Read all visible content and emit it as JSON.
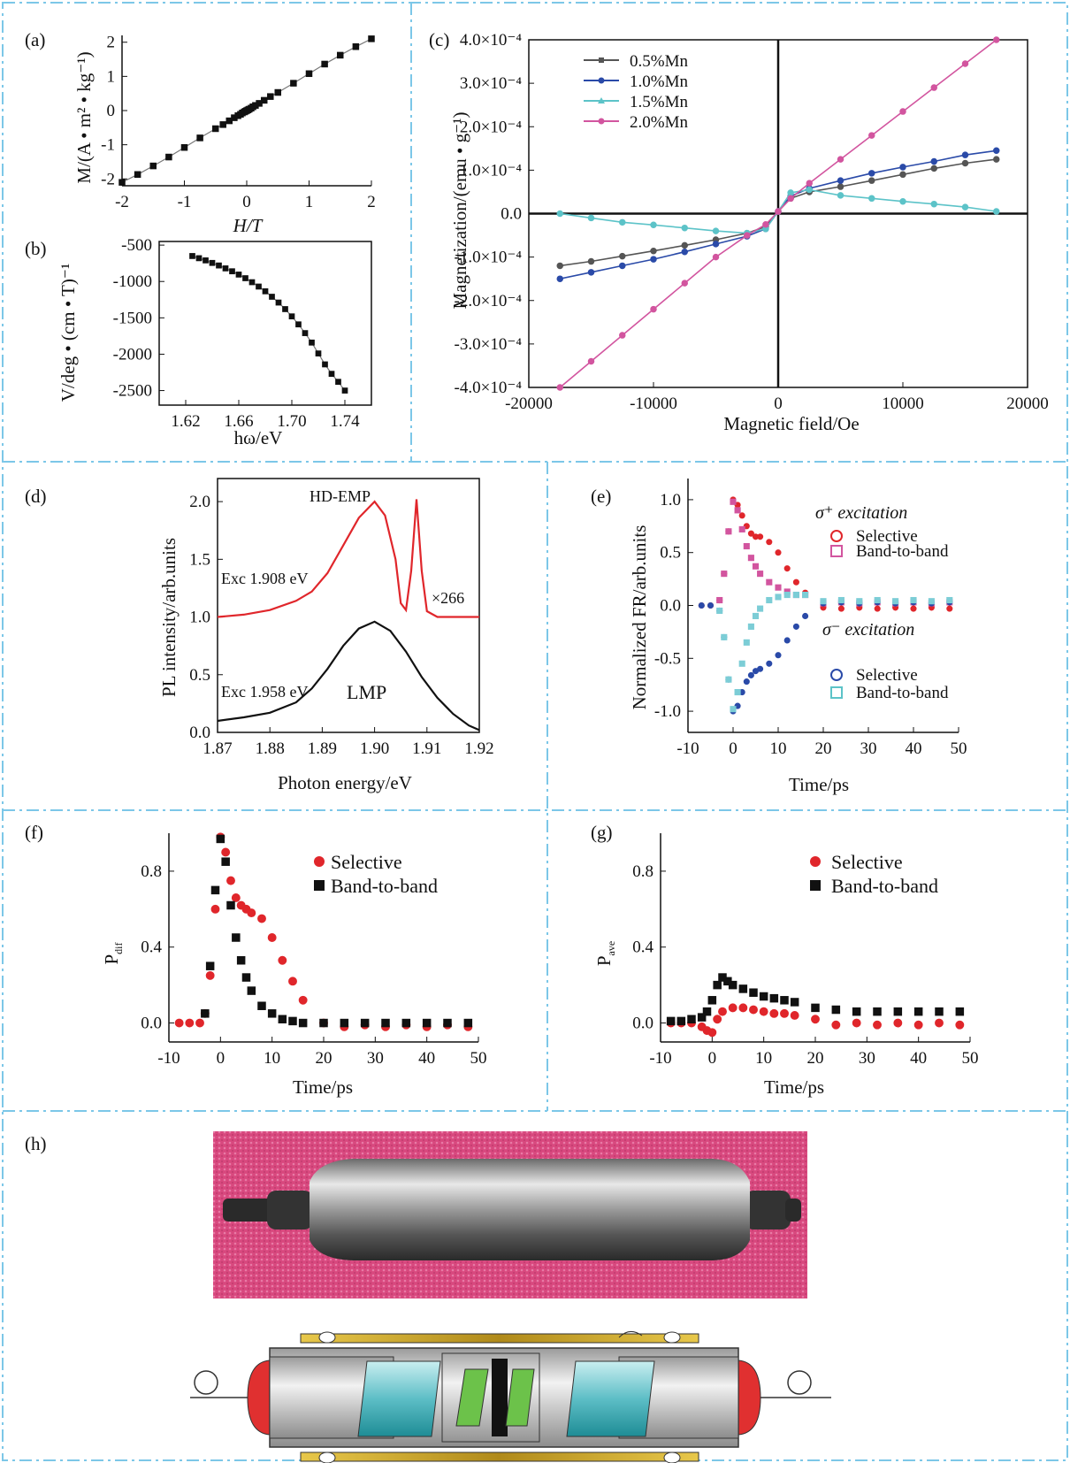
{
  "panels": {
    "a": {
      "label": "(a)",
      "xlabel": "H/T",
      "ylabel": "M/(A • m² • kg⁻¹)"
    },
    "b": {
      "label": "(b)",
      "xlabel": "hω/eV",
      "ylabel": "V/deg • (cm • T)⁻¹"
    },
    "c": {
      "label": "(c)",
      "xlabel": "Magnetic field/Oe",
      "ylabel": "Magnetization/(emu • g⁻¹)"
    },
    "d": {
      "label": "(d)",
      "xlabel": "Photon energy/eV",
      "ylabel": "PL intensity/arb.units",
      "ann_hdemp": "HD-EMP",
      "ann_exc1": "Exc 1.908 eV",
      "ann_exc2": "Exc 1.958 eV",
      "ann_x266": "×266",
      "ann_lmp": "LMP"
    },
    "e": {
      "label": "(e)",
      "xlabel": "Time/ps",
      "ylabel": "Normalized FR/arb.units",
      "sigma_plus": "σ⁺ excitation",
      "sigma_minus": "σ⁻ excitation",
      "leg_selective": "Selective",
      "leg_btb": "Band-to-band"
    },
    "f": {
      "label": "(f)",
      "xlabel": "Time/ps",
      "ylabel": "P",
      "ysub": "dif",
      "leg_selective": "Selective",
      "leg_btb": "Band-to-band"
    },
    "g": {
      "label": "(g)",
      "xlabel": "Time/ps",
      "ylabel": "P",
      "ysub": "ave",
      "leg_selective": "Selective",
      "leg_btb": "Band-to-band"
    },
    "h": {
      "label": "(h)"
    }
  },
  "colors": {
    "border": "#7cc7e8",
    "red": "#e0262b",
    "pink": "#d2559f",
    "blue": "#2a4aa8",
    "cyan": "#5cc3c8",
    "gray": "#555555"
  },
  "chart_data": [
    {
      "id": "a",
      "type": "line",
      "xlim": [
        -2,
        2
      ],
      "ylim": [
        -2.2,
        2.2
      ],
      "xticks": [
        "-2",
        "-1",
        "0",
        "1",
        "2"
      ],
      "yticks": [
        "-2",
        "-1",
        "0",
        "1",
        "2"
      ],
      "x": [
        -2.0,
        -1.75,
        -1.5,
        -1.25,
        -1.0,
        -0.75,
        -0.5,
        -0.38,
        -0.28,
        -0.2,
        -0.14,
        -0.1,
        -0.07,
        -0.04,
        -0.02,
        0,
        0.02,
        0.04,
        0.07,
        0.1,
        0.14,
        0.2,
        0.28,
        0.38,
        0.5,
        0.75,
        1.0,
        1.25,
        1.5,
        1.75,
        2.0
      ],
      "y": [
        -2.1,
        -1.87,
        -1.62,
        -1.36,
        -1.08,
        -0.8,
        -0.53,
        -0.41,
        -0.3,
        -0.21,
        -0.15,
        -0.11,
        -0.07,
        -0.04,
        -0.02,
        0,
        0.02,
        0.04,
        0.07,
        0.11,
        0.15,
        0.21,
        0.3,
        0.41,
        0.53,
        0.8,
        1.08,
        1.36,
        1.62,
        1.87,
        2.1
      ]
    },
    {
      "id": "b",
      "type": "line",
      "xlim": [
        1.6,
        1.76
      ],
      "ylim": [
        -2700,
        -450
      ],
      "xticks": [
        "1.62",
        "1.66",
        "1.70",
        "1.74"
      ],
      "yticks": [
        "-500",
        "-1000",
        "-1500",
        "-2000",
        "-2500"
      ],
      "x": [
        1.625,
        1.63,
        1.635,
        1.64,
        1.645,
        1.65,
        1.655,
        1.66,
        1.665,
        1.67,
        1.675,
        1.68,
        1.685,
        1.69,
        1.695,
        1.7,
        1.705,
        1.71,
        1.715,
        1.72,
        1.725,
        1.73,
        1.735,
        1.74
      ],
      "y": [
        -650,
        -680,
        -710,
        -745,
        -780,
        -820,
        -860,
        -905,
        -955,
        -1010,
        -1070,
        -1135,
        -1210,
        -1290,
        -1380,
        -1480,
        -1590,
        -1710,
        -1840,
        -1990,
        -2140,
        -2270,
        -2380,
        -2500
      ]
    },
    {
      "id": "c",
      "type": "line",
      "xlim": [
        -20000,
        20000
      ],
      "ylim": [
        -0.0004,
        0.0004
      ],
      "xticks": [
        "-20000",
        "-10000",
        "0",
        "10000",
        "20000"
      ],
      "yticks": [
        "4.0×10⁻⁴",
        "3.0×10⁻⁴",
        "2.0×10⁻⁴",
        "1.0×10⁻⁴",
        "0.0",
        "-1.0×10⁻⁴",
        "-2.0×10⁻⁴",
        "-3.0×10⁻⁴",
        "-4.0×10⁻⁴"
      ],
      "x": [
        -17500,
        -15000,
        -12500,
        -10000,
        -7500,
        -5000,
        -2500,
        -1000,
        0,
        1000,
        2500,
        5000,
        7500,
        10000,
        12500,
        15000,
        17500
      ],
      "series": [
        {
          "name": "0.5%Mn",
          "y": [
            -0.00012,
            -0.00011,
            -9.8e-05,
            -8.6e-05,
            -7.3e-05,
            -6e-05,
            -4.5e-05,
            -3e-05,
            5e-06,
            3.5e-05,
            5e-05,
            6.2e-05,
            7.6e-05,
            9e-05,
            0.000104,
            0.000116,
            0.000125
          ]
        },
        {
          "name": "1.0%Mn",
          "y": [
            -0.00015,
            -0.000135,
            -0.00012,
            -0.000105,
            -8.8e-05,
            -7e-05,
            -5.2e-05,
            -3.5e-05,
            5e-06,
            4e-05,
            5.8e-05,
            7.6e-05,
            9.3e-05,
            0.000107,
            0.00012,
            0.000135,
            0.000145
          ]
        },
        {
          "name": "1.5%Mn",
          "y": [
            0.0,
            -1e-05,
            -2e-05,
            -2.6e-05,
            -3.3e-05,
            -4e-05,
            -4.5e-05,
            -3.5e-05,
            5e-06,
            4.8e-05,
            5.5e-05,
            4.2e-05,
            3.5e-05,
            2.8e-05,
            2.2e-05,
            1.5e-05,
            5e-06
          ]
        },
        {
          "name": "2.0%Mn",
          "y": [
            -0.0004,
            -0.00034,
            -0.00028,
            -0.00022,
            -0.00016,
            -0.0001,
            -5e-05,
            -2.5e-05,
            5e-06,
            3.5e-05,
            7e-05,
            0.000125,
            0.00018,
            0.000235,
            0.00029,
            0.000345,
            0.0004
          ]
        }
      ]
    },
    {
      "id": "d",
      "type": "line",
      "xlim": [
        1.87,
        1.92
      ],
      "ylim": [
        0,
        2.2
      ],
      "xticks": [
        "1.87",
        "1.88",
        "1.89",
        "1.90",
        "1.91",
        "1.92"
      ],
      "yticks": [
        "0.0",
        "0.5",
        "1.0",
        "1.5",
        "2.0"
      ],
      "series": [
        {
          "name": "Exc 1.908 eV",
          "x": [
            1.87,
            1.875,
            1.88,
            1.885,
            1.888,
            1.891,
            1.894,
            1.897,
            1.9,
            1.902,
            1.904,
            1.905,
            1.906,
            1.907,
            1.908,
            1.909,
            1.91,
            1.912,
            1.915,
            1.92
          ],
          "y": [
            1.0,
            1.02,
            1.06,
            1.14,
            1.22,
            1.38,
            1.62,
            1.86,
            2.0,
            1.88,
            1.5,
            1.12,
            1.06,
            1.4,
            2.02,
            1.4,
            1.05,
            1.0,
            1.0,
            1.0
          ]
        },
        {
          "name": "Exc 1.958 eV",
          "x": [
            1.87,
            1.875,
            1.88,
            1.885,
            1.888,
            1.891,
            1.894,
            1.897,
            1.9,
            1.903,
            1.906,
            1.909,
            1.912,
            1.915,
            1.918,
            1.92
          ],
          "y": [
            0.1,
            0.13,
            0.17,
            0.26,
            0.38,
            0.55,
            0.75,
            0.9,
            0.96,
            0.88,
            0.7,
            0.48,
            0.3,
            0.16,
            0.06,
            0.02
          ]
        }
      ]
    },
    {
      "id": "e",
      "type": "scatter",
      "xlim": [
        -10,
        50
      ],
      "ylim": [
        -1.2,
        1.2
      ],
      "xticks": [
        "-10",
        "0",
        "10",
        "20",
        "30",
        "40",
        "50"
      ],
      "yticks": [
        "1.0",
        "0.5",
        "0.0",
        "-0.5",
        "-1.0"
      ],
      "series": [
        {
          "name": "σ⁺ Selective",
          "x": [
            -7,
            -5,
            -3,
            -2,
            -1,
            0,
            1,
            2,
            3,
            4,
            5,
            6,
            8,
            10,
            12,
            14,
            16,
            20,
            24,
            28,
            32,
            36,
            40,
            44,
            48
          ],
          "y": [
            0.0,
            0.0,
            0.05,
            0.3,
            0.7,
            1.0,
            0.95,
            0.85,
            0.75,
            0.68,
            0.65,
            0.65,
            0.6,
            0.5,
            0.35,
            0.22,
            0.12,
            -0.02,
            -0.03,
            -0.02,
            -0.03,
            -0.02,
            -0.03,
            -0.02,
            -0.03
          ]
        },
        {
          "name": "σ⁺ Band-to-band",
          "x": [
            -3,
            -2,
            -1,
            0,
            1,
            2,
            3,
            4,
            5,
            6,
            8,
            10,
            12,
            14,
            16,
            20,
            24,
            28,
            32,
            36,
            40,
            44,
            48
          ],
          "y": [
            0.05,
            0.3,
            0.7,
            0.98,
            0.9,
            0.72,
            0.56,
            0.45,
            0.37,
            0.3,
            0.22,
            0.17,
            0.13,
            0.1,
            0.1,
            0.02,
            0.03,
            0.02,
            0.03,
            0.02,
            0.03,
            0.02,
            0.03
          ]
        },
        {
          "name": "σ⁻ Selective",
          "x": [
            -7,
            -5,
            -3,
            -2,
            -1,
            0,
            1,
            2,
            3,
            4,
            5,
            6,
            8,
            10,
            12,
            14,
            16,
            20,
            24,
            28,
            32,
            36,
            40,
            44,
            48
          ],
          "y": [
            0.0,
            0.0,
            -0.05,
            -0.3,
            -0.7,
            -1.0,
            -0.95,
            -0.82,
            -0.72,
            -0.66,
            -0.62,
            -0.6,
            -0.55,
            -0.47,
            -0.33,
            -0.2,
            -0.1,
            0.02,
            0.03,
            0.02,
            0.03,
            0.02,
            0.03,
            0.02,
            0.03
          ]
        },
        {
          "name": "σ⁻ Band-to-band",
          "x": [
            -3,
            -2,
            -1,
            0,
            1,
            2,
            3,
            4,
            5,
            6,
            8,
            10,
            12,
            14,
            16,
            20,
            24,
            28,
            32,
            36,
            40,
            44,
            48
          ],
          "y": [
            -0.05,
            -0.3,
            -0.7,
            -0.98,
            -0.82,
            -0.55,
            -0.35,
            -0.2,
            -0.1,
            -0.03,
            0.05,
            0.08,
            0.1,
            0.1,
            0.1,
            0.04,
            0.05,
            0.04,
            0.05,
            0.04,
            0.05,
            0.04,
            0.05
          ]
        }
      ]
    },
    {
      "id": "f",
      "type": "scatter",
      "xlim": [
        -10,
        50
      ],
      "ylim": [
        -0.1,
        1.0
      ],
      "xticks": [
        "-10",
        "0",
        "10",
        "20",
        "30",
        "40",
        "50"
      ],
      "yticks": [
        "0.0",
        "0.4",
        "0.8"
      ],
      "series": [
        {
          "name": "Selective",
          "x": [
            -8,
            -6,
            -4,
            -3,
            -2,
            -1,
            0,
            1,
            2,
            3,
            4,
            5,
            6,
            8,
            10,
            12,
            14,
            16,
            20,
            24,
            28,
            32,
            36,
            40,
            44,
            48
          ],
          "y": [
            0.0,
            0.0,
            0.0,
            0.05,
            0.25,
            0.6,
            0.98,
            0.9,
            0.75,
            0.66,
            0.62,
            0.6,
            0.58,
            0.55,
            0.45,
            0.33,
            0.22,
            0.12,
            0.0,
            -0.02,
            -0.01,
            -0.02,
            -0.01,
            -0.02,
            -0.01,
            -0.02
          ]
        },
        {
          "name": "Band-to-band",
          "x": [
            -3,
            -2,
            -1,
            0,
            1,
            2,
            3,
            4,
            5,
            6,
            8,
            10,
            12,
            14,
            16,
            20,
            24,
            28,
            32,
            36,
            40,
            44,
            48
          ],
          "y": [
            0.05,
            0.3,
            0.7,
            0.97,
            0.85,
            0.62,
            0.45,
            0.33,
            0.24,
            0.17,
            0.09,
            0.05,
            0.02,
            0.01,
            0.0,
            0.0,
            0.0,
            0.0,
            0.0,
            0.0,
            0.0,
            0.0,
            0.0
          ]
        }
      ]
    },
    {
      "id": "g",
      "type": "scatter",
      "xlim": [
        -10,
        50
      ],
      "ylim": [
        -0.1,
        1.0
      ],
      "xticks": [
        "-10",
        "0",
        "10",
        "20",
        "30",
        "40",
        "50"
      ],
      "yticks": [
        "0.0",
        "0.4",
        "0.8"
      ],
      "series": [
        {
          "name": "Selective",
          "x": [
            -8,
            -6,
            -4,
            -2,
            -1,
            0,
            1,
            2,
            4,
            6,
            8,
            10,
            12,
            14,
            16,
            20,
            24,
            28,
            32,
            36,
            40,
            44,
            48
          ],
          "y": [
            0.0,
            0.0,
            0.0,
            -0.02,
            -0.04,
            -0.05,
            0.02,
            0.06,
            0.08,
            0.08,
            0.07,
            0.06,
            0.05,
            0.05,
            0.04,
            0.02,
            -0.01,
            0.0,
            -0.01,
            0.0,
            -0.01,
            0.0,
            -0.01
          ]
        },
        {
          "name": "Band-to-band",
          "x": [
            -8,
            -6,
            -4,
            -2,
            -1,
            0,
            1,
            2,
            3,
            4,
            6,
            8,
            10,
            12,
            14,
            16,
            20,
            24,
            28,
            32,
            36,
            40,
            44,
            48
          ],
          "y": [
            0.01,
            0.01,
            0.02,
            0.03,
            0.06,
            0.12,
            0.2,
            0.24,
            0.22,
            0.2,
            0.18,
            0.16,
            0.14,
            0.13,
            0.12,
            0.11,
            0.08,
            0.07,
            0.06,
            0.06,
            0.06,
            0.06,
            0.06,
            0.06
          ]
        }
      ]
    }
  ]
}
